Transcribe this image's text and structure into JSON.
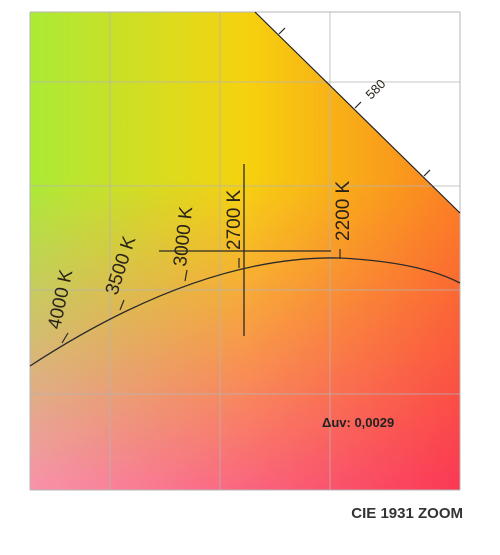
{
  "diagram": {
    "caption": "CIE 1931 ZOOM",
    "deviation_readout": "Δuv: 0,0029",
    "spectral_locus_label": "580",
    "isotherms": [
      {
        "label": "4000 K"
      },
      {
        "label": "3500 K"
      },
      {
        "label": "3000 K"
      },
      {
        "label": "2700 K"
      },
      {
        "label": "2200 K"
      }
    ],
    "colors": {
      "corner_top_left": "#a6ea2a",
      "corner_top_right": "#f6d000",
      "corner_right": "#fb7b14",
      "corner_bottom_right": "#fb2c4a",
      "corner_bottom_left": "#f98ca6",
      "grid": "#b4b4b4",
      "curve": "#2a2a2a"
    }
  }
}
